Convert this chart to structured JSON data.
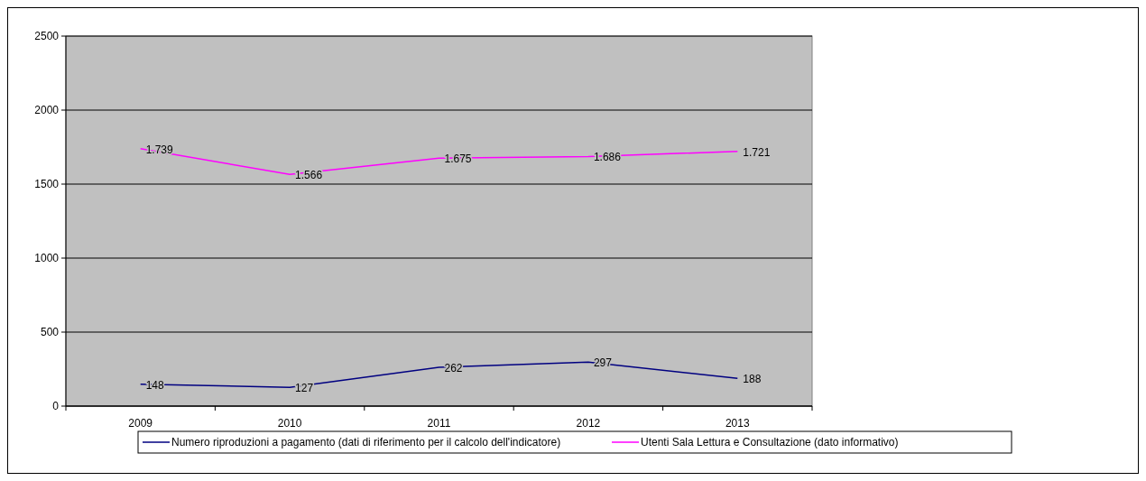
{
  "chart_data": {
    "type": "line",
    "categories": [
      "2009",
      "2010",
      "2011",
      "2012",
      "2013"
    ],
    "series": [
      {
        "name": "Numero riproduzioni a pagamento (dati di riferimento per il calcolo dell'indicatore)",
        "color": "#000080",
        "values": [
          148,
          127,
          262,
          297,
          188
        ],
        "value_labels": [
          "148",
          "127",
          "262",
          "297",
          "188"
        ]
      },
      {
        "name": "Utenti Sala Lettura e Consultazione (dato informativo)",
        "color": "#ff00ff",
        "values": [
          1739,
          1566,
          1675,
          1686,
          1721
        ],
        "value_labels": [
          "1.739",
          "1.566",
          "1.675",
          "1.686",
          "1.721"
        ]
      }
    ],
    "ylim": [
      0,
      2500
    ],
    "yticks": [
      0,
      500,
      1000,
      1500,
      2000,
      2500
    ],
    "grid": "y",
    "legend": "bottom",
    "marker": "none",
    "line_style": "solid"
  }
}
